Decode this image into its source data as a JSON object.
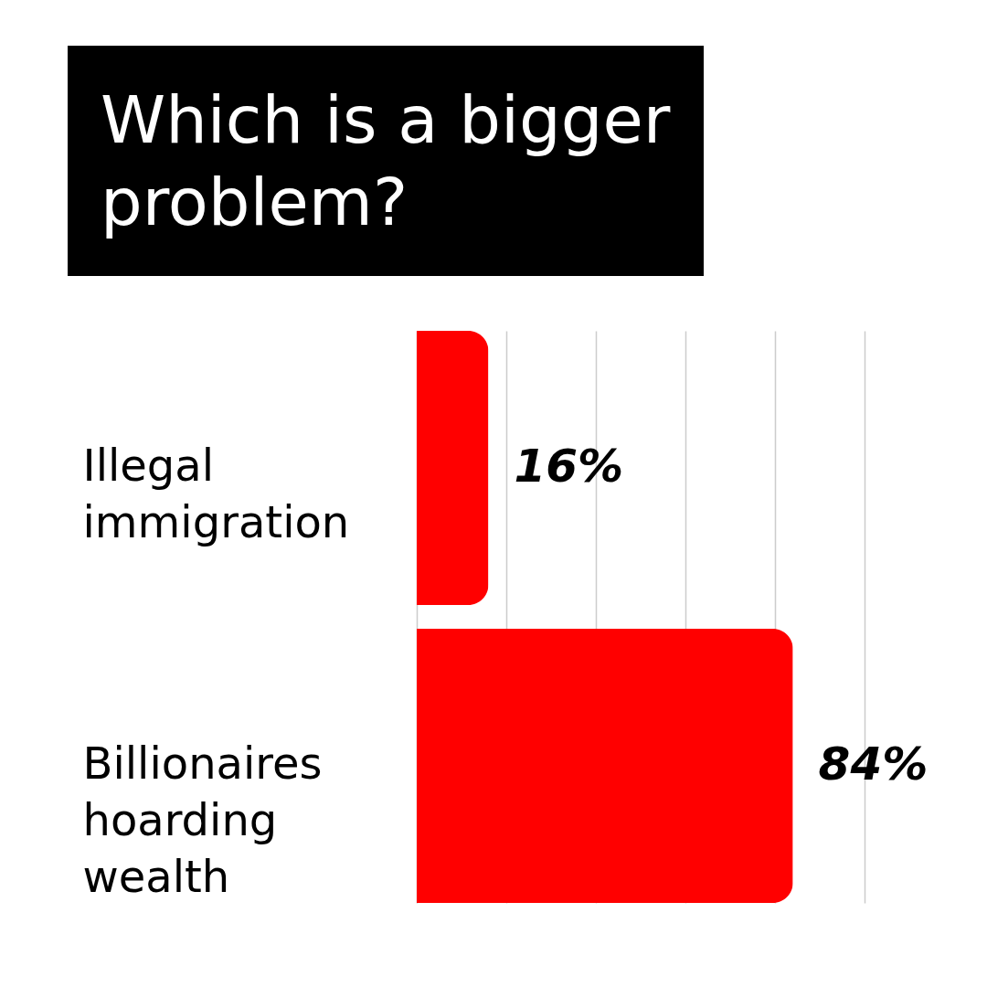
{
  "chart_data": {
    "type": "bar",
    "orientation": "horizontal",
    "title": "Which is a bigger problem?",
    "categories": [
      "Illegal immigration",
      "Billionaires hoarding wealth"
    ],
    "values": [
      16,
      84
    ],
    "color": "#ff0000",
    "value_labels": [
      "16%",
      "84%"
    ],
    "xlim": [
      0,
      100
    ],
    "xticks": [
      {
        "value": 0,
        "label": null
      },
      {
        "value": 20,
        "label": null
      },
      {
        "value": 40,
        "label": null
      },
      {
        "value": 60,
        "label": null
      },
      {
        "value": 80,
        "label": null
      },
      {
        "value": 100,
        "label": null
      }
    ],
    "grid": "x",
    "tick_labels": "y"
  }
}
